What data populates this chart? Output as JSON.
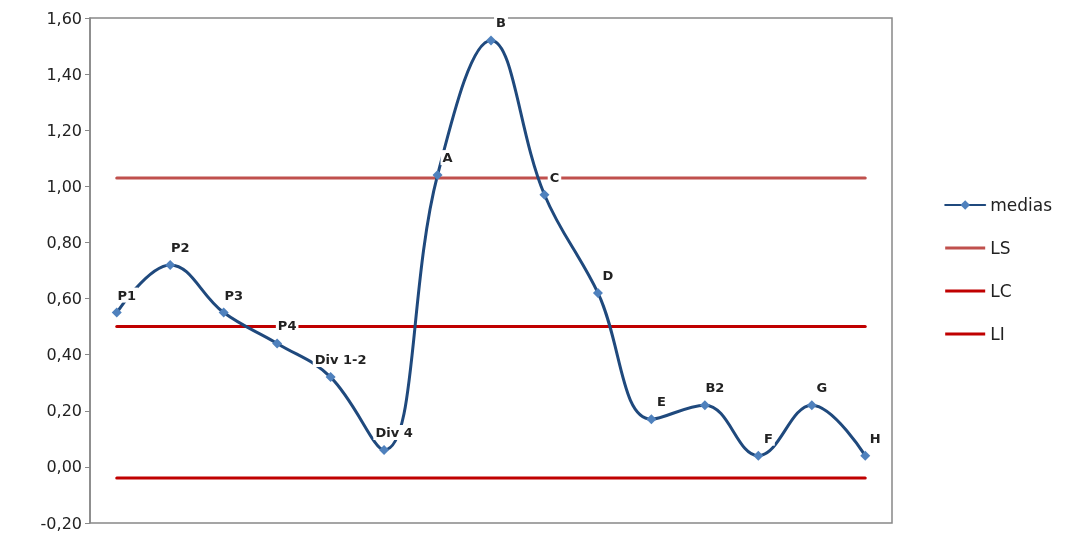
{
  "chart_data": {
    "type": "line",
    "categories": [
      "P1",
      "P2",
      "P3",
      "P4",
      "Div 1-2",
      "Div 4",
      "A",
      "B",
      "C",
      "D",
      "E",
      "B2",
      "F",
      "G",
      "H"
    ],
    "series": [
      {
        "name": "medias",
        "color": "#1f497d",
        "marker": "diamond",
        "values": [
          0.55,
          0.72,
          0.55,
          0.44,
          0.32,
          0.06,
          1.04,
          1.52,
          0.97,
          0.62,
          0.17,
          0.22,
          0.04,
          0.22,
          0.04
        ]
      },
      {
        "name": "LS",
        "color": "#c0504d",
        "marker": "none",
        "values": [
          1.03,
          1.03,
          1.03,
          1.03,
          1.03,
          1.03,
          1.03,
          1.03,
          1.03,
          1.03,
          1.03,
          1.03,
          1.03,
          1.03,
          1.03
        ]
      },
      {
        "name": "LC",
        "color": "#c00000",
        "marker": "none",
        "values": [
          0.5,
          0.5,
          0.5,
          0.5,
          0.5,
          0.5,
          0.5,
          0.5,
          0.5,
          0.5,
          0.5,
          0.5,
          0.5,
          0.5,
          0.5
        ]
      },
      {
        "name": "LI",
        "color": "#c00000",
        "marker": "none",
        "values": [
          -0.04,
          -0.04,
          -0.04,
          -0.04,
          -0.04,
          -0.04,
          -0.04,
          -0.04,
          -0.04,
          -0.04,
          -0.04,
          -0.04,
          -0.04,
          -0.04,
          -0.04
        ]
      }
    ],
    "ylim": [
      -0.2,
      1.6
    ],
    "yticks": [
      {
        "value": -0.2,
        "label": "-0,20"
      },
      {
        "value": 0,
        "label": "0,00"
      },
      {
        "value": 0.2,
        "label": "0,20"
      },
      {
        "value": 0.4,
        "label": "0,40"
      },
      {
        "value": 0.6,
        "label": "0,60"
      },
      {
        "value": 0.8,
        "label": "0,80"
      },
      {
        "value": 1,
        "label": "1,00"
      },
      {
        "value": 1.2,
        "label": "1,20"
      },
      {
        "value": 1.4,
        "label": "1,40"
      },
      {
        "value": 1.6,
        "label": "1,60"
      }
    ],
    "tick_labels": "y",
    "grid": false,
    "legend": "right",
    "line_style": "solid"
  }
}
